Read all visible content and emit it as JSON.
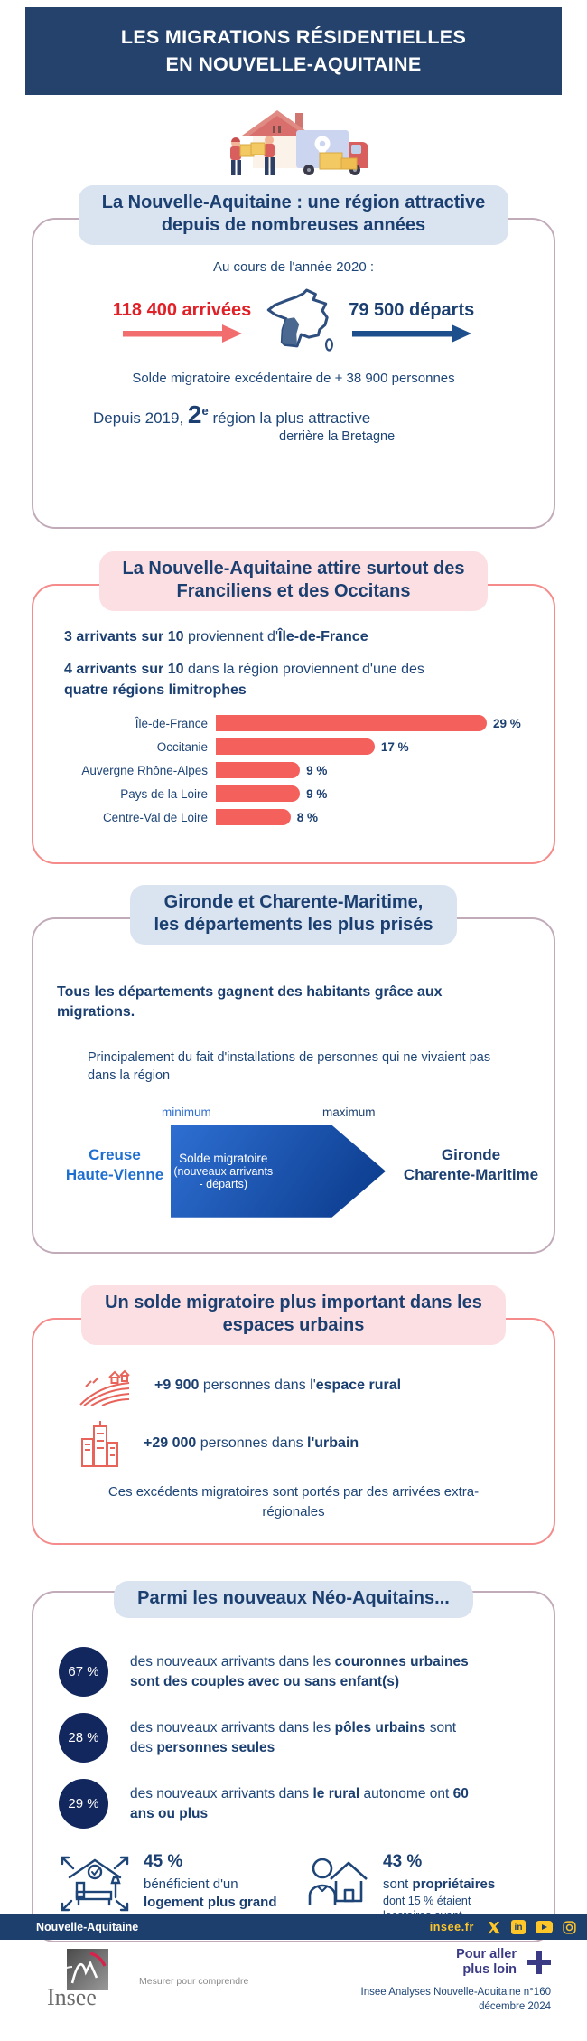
{
  "colors": {
    "banner": "#24426b",
    "footer": "#1d3f6e",
    "navy_text": "#1e4577",
    "heading": "#1b3f70",
    "red": "#e02127",
    "salmon": "#f4615c",
    "pill_blue": "#dae4f0",
    "pill_pink": "#fbdfe2",
    "border_mauve": "#c2abb9",
    "border_salmon": "#f58b8b",
    "circle_navy": "#12275e",
    "yellow": "#ffc629",
    "bright_blue": "#1e6fd0",
    "indigo": "#3a3a85"
  },
  "banner": {
    "line1": "LES MIGRATIONS RÉSIDENTIELLES",
    "line2": "EN NOUVELLE-AQUITAINE"
  },
  "section1": {
    "title": "La Nouvelle-Aquitaine : une région attractive\ndepuis de nombreuses années",
    "intro": "Au cours de l'année 2020 :",
    "arrivals": "118 400 arrivées",
    "departures": "79 500 départs",
    "balance": "Solde migratoire excédentaire de + 38 900 personnes",
    "since_pre": "Depuis 2019, ",
    "rank": "2",
    "rank_sup": "e",
    "since_post": " région la plus attractive",
    "behind": "derrière la Bretagne"
  },
  "section2": {
    "title": "La Nouvelle-Aquitaine attire surtout des\nFranciliens et des Occitans",
    "fact1_b1": "3 arrivants sur 10",
    "fact1_r1": " proviennent d'",
    "fact1_b2": "Île-de-France",
    "fact2_b1": "4 arrivants sur 10",
    "fact2_r1": " dans la région proviennent d'une des ",
    "fact2_b2": "quatre régions limitrophes"
  },
  "chart_data": {
    "type": "bar",
    "orientation": "horizontal",
    "categories": [
      "Île-de-France",
      "Occitanie",
      "Auvergne Rhône-Alpes",
      "Pays de la Loire",
      "Centre-Val de Loire"
    ],
    "values": [
      29,
      17,
      9,
      9,
      8
    ],
    "value_labels": [
      "29 %",
      "17 %",
      "9 %",
      "9 %",
      "8 %"
    ],
    "bar_color": "#f4615c",
    "xlim": [
      0,
      30
    ],
    "grid": false,
    "legend": false
  },
  "section3": {
    "title": "Gironde et Charente-Maritime,\nles départements les plus prisés",
    "lead": "Tous les départements gagnent des habitants grâce aux migrations.",
    "subnote": "Principalement du fait d'installations de personnes qui ne vivaient pas dans la région",
    "min_label": "minimum",
    "max_label": "maximum",
    "left_departments": "Creuse\nHaute-Vienne",
    "arrow_line1": "Solde migratoire",
    "arrow_line2": "(nouveaux arrivants - départs)",
    "right_departments": "Gironde\nCharente-Maritime"
  },
  "section4": {
    "title": "Un solde migratoire plus important dans les\nespaces urbains",
    "rural_b1": "+9 900",
    "rural_r1": " personnes dans l'",
    "rural_b2": "espace rural",
    "urban_b1": "+29 000",
    "urban_r1": " personnes dans ",
    "urban_b2": "l'urbain",
    "note": "Ces excédents migratoires sont portés par des arrivées extra-régionales"
  },
  "section5": {
    "title": "Parmi les nouveaux Néo-Aquitains...",
    "stats": [
      {
        "pct": "67 %",
        "r1": "des nouveaux arrivants dans les ",
        "b1": "couronnes urbaines sont des couples avec ou sans enfant(s)",
        "r2": "",
        "b2": ""
      },
      {
        "pct": "28 %",
        "r1": "des nouveaux arrivants dans les ",
        "b1": "pôles urbains",
        "r2": " sont des ",
        "b2": "personnes seules"
      },
      {
        "pct": "29 %",
        "r1": "des nouveaux arrivants dans ",
        "b1": "le rural",
        "r2": " autonome ont ",
        "b2": "60 ans ou plus"
      }
    ],
    "home": {
      "pct": "45 %",
      "line1": "bénéficient d'un",
      "line2": "logement plus grand"
    },
    "owner": {
      "pct": "43 %",
      "r1": "sont ",
      "b1": "propriétaires",
      "small1": "dont 15 % étaient",
      "small2": "locataires avant"
    }
  },
  "footer": {
    "region": "Nouvelle-Aquitaine",
    "site": "insee.fr",
    "linkedin_label": "in"
  },
  "brand": {
    "name": "Insee",
    "tagline": "Mesurer pour comprendre"
  },
  "further": {
    "cta": "Pour aller\nplus loin",
    "ref1": "Insee Analyses Nouvelle-Aquitaine n°160",
    "ref2": "décembre 2024"
  }
}
